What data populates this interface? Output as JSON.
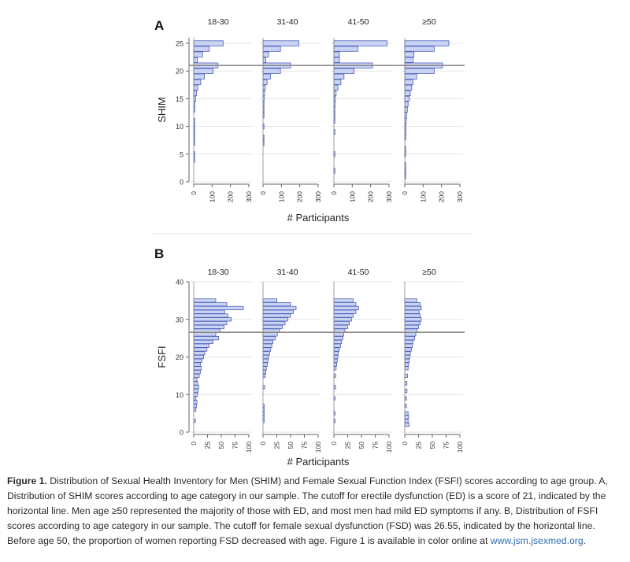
{
  "figure": {
    "caption_lead": "Figure 1.",
    "caption_text": "Distribution of Sexual Health Inventory for Men (SHIM) and Female Sexual Function Index (FSFI) scores according to age group. A, Distribution of SHIM scores according to age category in our sample. The cutoff for erectile dysfunction (ED) is a score of 21, indicated by the horizontal line. Men age ≥50 represented the majority of those with ED, and most men had mild ED symptoms if any. B, Distribution of FSFI scores according to age category in our sample. The cutoff for female sexual dysfunction (FSD) was 26.55, indicated by the horizontal line. Before age 50, the proportion of women reporting FSD decreased with age. Figure 1 is available in color online at ",
    "caption_link": "www.jsm.jsexmed.org",
    "caption_end": "."
  },
  "colors": {
    "bar_fill": "#c9d3f3",
    "bar_stroke": "#4c5fb8",
    "cutoff_line": "#8a8a8a",
    "grid": "#e4e4e4"
  },
  "chart_data": [
    {
      "type": "bar",
      "orientation": "horizontal",
      "panel": "A",
      "ylabel": "SHIM",
      "xlabel": "# Participants",
      "ylim": [
        0,
        26
      ],
      "yticks": [
        0,
        5,
        10,
        15,
        20,
        25
      ],
      "xticks": [
        0,
        100,
        200,
        300
      ],
      "xlim": [
        0,
        300
      ],
      "cutoff": 21,
      "grid": true,
      "facets": [
        {
          "label": "18-30",
          "bins": [
            {
              "y": 4,
              "v": 3
            },
            {
              "y": 5,
              "v": 4
            },
            {
              "y": 7,
              "v": 3
            },
            {
              "y": 8,
              "v": 2
            },
            {
              "y": 9,
              "v": 4
            },
            {
              "y": 10,
              "v": 5
            },
            {
              "y": 11,
              "v": 4
            },
            {
              "y": 13,
              "v": 5
            },
            {
              "y": 14,
              "v": 6
            },
            {
              "y": 15,
              "v": 10
            },
            {
              "y": 16,
              "v": 15
            },
            {
              "y": 17,
              "v": 22
            },
            {
              "y": 18,
              "v": 38
            },
            {
              "y": 19,
              "v": 58
            },
            {
              "y": 20,
              "v": 105
            },
            {
              "y": 21,
              "v": 132
            },
            {
              "y": 22,
              "v": 20
            },
            {
              "y": 23,
              "v": 48
            },
            {
              "y": 24,
              "v": 85
            },
            {
              "y": 25,
              "v": 160
            }
          ]
        },
        {
          "label": "31-40",
          "bins": [
            {
              "y": 7,
              "v": 2
            },
            {
              "y": 8,
              "v": 2
            },
            {
              "y": 10,
              "v": 2
            },
            {
              "y": 12,
              "v": 3
            },
            {
              "y": 13,
              "v": 4
            },
            {
              "y": 14,
              "v": 5
            },
            {
              "y": 15,
              "v": 6
            },
            {
              "y": 16,
              "v": 8
            },
            {
              "y": 17,
              "v": 12
            },
            {
              "y": 18,
              "v": 22
            },
            {
              "y": 19,
              "v": 40
            },
            {
              "y": 20,
              "v": 95
            },
            {
              "y": 21,
              "v": 150
            },
            {
              "y": 22,
              "v": 15
            },
            {
              "y": 23,
              "v": 30
            },
            {
              "y": 24,
              "v": 95
            },
            {
              "y": 25,
              "v": 195
            }
          ]
        },
        {
          "label": "41-50",
          "bins": [
            {
              "y": 2,
              "v": 2
            },
            {
              "y": 5,
              "v": 2
            },
            {
              "y": 9,
              "v": 2
            },
            {
              "y": 11,
              "v": 2
            },
            {
              "y": 12,
              "v": 3
            },
            {
              "y": 13,
              "v": 4
            },
            {
              "y": 14,
              "v": 6
            },
            {
              "y": 15,
              "v": 8
            },
            {
              "y": 16,
              "v": 12
            },
            {
              "y": 17,
              "v": 22
            },
            {
              "y": 18,
              "v": 38
            },
            {
              "y": 19,
              "v": 55
            },
            {
              "y": 20,
              "v": 110
            },
            {
              "y": 21,
              "v": 210
            },
            {
              "y": 22,
              "v": 30
            },
            {
              "y": 23,
              "v": 30
            },
            {
              "y": 24,
              "v": 130
            },
            {
              "y": 25,
              "v": 290
            }
          ]
        },
        {
          "label": "≥50",
          "bins": [
            {
              "y": 1,
              "v": 3
            },
            {
              "y": 2,
              "v": 3
            },
            {
              "y": 3,
              "v": 3
            },
            {
              "y": 5,
              "v": 4
            },
            {
              "y": 6,
              "v": 4
            },
            {
              "y": 8,
              "v": 5
            },
            {
              "y": 9,
              "v": 6
            },
            {
              "y": 10,
              "v": 6
            },
            {
              "y": 11,
              "v": 8
            },
            {
              "y": 12,
              "v": 10
            },
            {
              "y": 13,
              "v": 14
            },
            {
              "y": 14,
              "v": 18
            },
            {
              "y": 15,
              "v": 25
            },
            {
              "y": 16,
              "v": 30
            },
            {
              "y": 17,
              "v": 38
            },
            {
              "y": 18,
              "v": 45
            },
            {
              "y": 19,
              "v": 65
            },
            {
              "y": 20,
              "v": 160
            },
            {
              "y": 21,
              "v": 205
            },
            {
              "y": 22,
              "v": 45
            },
            {
              "y": 23,
              "v": 50
            },
            {
              "y": 24,
              "v": 160
            },
            {
              "y": 25,
              "v": 240
            }
          ]
        }
      ]
    },
    {
      "type": "bar",
      "orientation": "horizontal",
      "panel": "B",
      "ylabel": "FSFI",
      "xlabel": "# Participants",
      "ylim": [
        0,
        40
      ],
      "yticks": [
        0,
        10,
        20,
        30,
        40
      ],
      "xticks": [
        0,
        25,
        50,
        75,
        100
      ],
      "xlim": [
        0,
        100
      ],
      "cutoff": 26.55,
      "grid": true,
      "facets": [
        {
          "label": "18-30",
          "bins": [
            {
              "y": 3,
              "v": 3
            },
            {
              "y": 6,
              "v": 4
            },
            {
              "y": 7,
              "v": 5
            },
            {
              "y": 8,
              "v": 6
            },
            {
              "y": 9,
              "v": 4
            },
            {
              "y": 10,
              "v": 7
            },
            {
              "y": 11,
              "v": 8
            },
            {
              "y": 12,
              "v": 9
            },
            {
              "y": 13,
              "v": 7
            },
            {
              "y": 14,
              "v": 6
            },
            {
              "y": 15,
              "v": 10
            },
            {
              "y": 16,
              "v": 12
            },
            {
              "y": 17,
              "v": 14
            },
            {
              "y": 18,
              "v": 12
            },
            {
              "y": 19,
              "v": 15
            },
            {
              "y": 20,
              "v": 18
            },
            {
              "y": 21,
              "v": 20
            },
            {
              "y": 22,
              "v": 24
            },
            {
              "y": 23,
              "v": 28
            },
            {
              "y": 24,
              "v": 35
            },
            {
              "y": 25,
              "v": 45
            },
            {
              "y": 26,
              "v": 40
            },
            {
              "y": 27,
              "v": 48
            },
            {
              "y": 28,
              "v": 55
            },
            {
              "y": 29,
              "v": 60
            },
            {
              "y": 30,
              "v": 68
            },
            {
              "y": 31,
              "v": 62
            },
            {
              "y": 32,
              "v": 56
            },
            {
              "y": 33,
              "v": 90
            },
            {
              "y": 34,
              "v": 60
            },
            {
              "y": 35,
              "v": 40
            }
          ]
        },
        {
          "label": "31-40",
          "bins": [
            {
              "y": 3,
              "v": 2
            },
            {
              "y": 4,
              "v": 2
            },
            {
              "y": 5,
              "v": 2
            },
            {
              "y": 6,
              "v": 2
            },
            {
              "y": 7,
              "v": 2
            },
            {
              "y": 12,
              "v": 3
            },
            {
              "y": 15,
              "v": 4
            },
            {
              "y": 16,
              "v": 5
            },
            {
              "y": 17,
              "v": 6
            },
            {
              "y": 18,
              "v": 8
            },
            {
              "y": 19,
              "v": 9
            },
            {
              "y": 20,
              "v": 10
            },
            {
              "y": 21,
              "v": 12
            },
            {
              "y": 22,
              "v": 14
            },
            {
              "y": 23,
              "v": 16
            },
            {
              "y": 24,
              "v": 18
            },
            {
              "y": 25,
              "v": 22
            },
            {
              "y": 26,
              "v": 26
            },
            {
              "y": 27,
              "v": 30
            },
            {
              "y": 28,
              "v": 35
            },
            {
              "y": 29,
              "v": 40
            },
            {
              "y": 30,
              "v": 45
            },
            {
              "y": 31,
              "v": 50
            },
            {
              "y": 32,
              "v": 55
            },
            {
              "y": 33,
              "v": 60
            },
            {
              "y": 34,
              "v": 50
            },
            {
              "y": 35,
              "v": 25
            }
          ]
        },
        {
          "label": "41-50",
          "bins": [
            {
              "y": 3,
              "v": 2
            },
            {
              "y": 5,
              "v": 2
            },
            {
              "y": 9,
              "v": 2
            },
            {
              "y": 12,
              "v": 3
            },
            {
              "y": 15,
              "v": 3
            },
            {
              "y": 17,
              "v": 4
            },
            {
              "y": 18,
              "v": 5
            },
            {
              "y": 19,
              "v": 6
            },
            {
              "y": 20,
              "v": 7
            },
            {
              "y": 21,
              "v": 8
            },
            {
              "y": 22,
              "v": 10
            },
            {
              "y": 23,
              "v": 12
            },
            {
              "y": 24,
              "v": 14
            },
            {
              "y": 25,
              "v": 16
            },
            {
              "y": 26,
              "v": 18
            },
            {
              "y": 27,
              "v": 20
            },
            {
              "y": 28,
              "v": 25
            },
            {
              "y": 29,
              "v": 28
            },
            {
              "y": 30,
              "v": 32
            },
            {
              "y": 31,
              "v": 35
            },
            {
              "y": 32,
              "v": 40
            },
            {
              "y": 33,
              "v": 45
            },
            {
              "y": 34,
              "v": 40
            },
            {
              "y": 35,
              "v": 35
            }
          ]
        },
        {
          "label": "≥50",
          "bins": [
            {
              "y": 2,
              "v": 8
            },
            {
              "y": 3,
              "v": 6
            },
            {
              "y": 4,
              "v": 7
            },
            {
              "y": 5,
              "v": 6
            },
            {
              "y": 7,
              "v": 3
            },
            {
              "y": 9,
              "v": 3
            },
            {
              "y": 11,
              "v": 4
            },
            {
              "y": 13,
              "v": 4
            },
            {
              "y": 15,
              "v": 5
            },
            {
              "y": 17,
              "v": 6
            },
            {
              "y": 18,
              "v": 7
            },
            {
              "y": 19,
              "v": 8
            },
            {
              "y": 20,
              "v": 9
            },
            {
              "y": 21,
              "v": 10
            },
            {
              "y": 22,
              "v": 12
            },
            {
              "y": 23,
              "v": 14
            },
            {
              "y": 24,
              "v": 15
            },
            {
              "y": 25,
              "v": 18
            },
            {
              "y": 26,
              "v": 20
            },
            {
              "y": 27,
              "v": 22
            },
            {
              "y": 28,
              "v": 25
            },
            {
              "y": 29,
              "v": 28
            },
            {
              "y": 30,
              "v": 30
            },
            {
              "y": 31,
              "v": 28
            },
            {
              "y": 32,
              "v": 26
            },
            {
              "y": 33,
              "v": 30
            },
            {
              "y": 34,
              "v": 28
            },
            {
              "y": 35,
              "v": 22
            }
          ]
        }
      ]
    }
  ]
}
